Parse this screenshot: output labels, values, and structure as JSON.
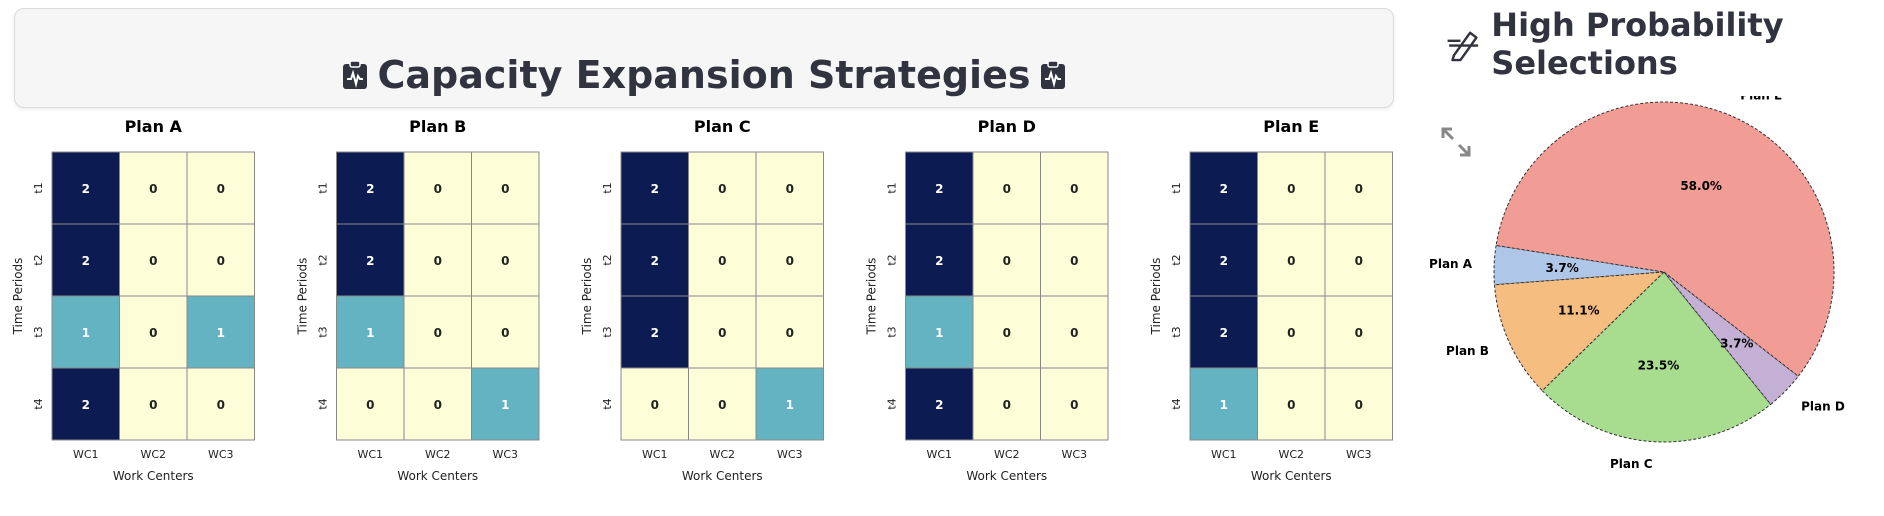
{
  "header": {
    "title": "Capacity Expansion Strategies",
    "title_icon": "clipboard-pulse-icon",
    "side_title": "High Probability Selections",
    "side_icon": "pen-strikethrough-icon",
    "expand_icon": "expand-arrows-icon"
  },
  "chart_data": [
    {
      "type": "heatmap",
      "title": "Plan A",
      "xlabel": "Work Centers",
      "ylabel": "Time Periods",
      "x_categories": [
        "WC1",
        "WC2",
        "WC3"
      ],
      "y_categories": [
        "t1",
        "t2",
        "t3",
        "t4"
      ],
      "values": [
        [
          2,
          0,
          0
        ],
        [
          2,
          0,
          0
        ],
        [
          1,
          0,
          1
        ],
        [
          2,
          0,
          0
        ]
      ],
      "colormap": "YlGnBu",
      "annotations": true
    },
    {
      "type": "heatmap",
      "title": "Plan B",
      "xlabel": "Work Centers",
      "ylabel": "Time Periods",
      "x_categories": [
        "WC1",
        "WC2",
        "WC3"
      ],
      "y_categories": [
        "t1",
        "t2",
        "t3",
        "t4"
      ],
      "values": [
        [
          2,
          0,
          0
        ],
        [
          2,
          0,
          0
        ],
        [
          1,
          0,
          0
        ],
        [
          0,
          0,
          1
        ]
      ],
      "colormap": "YlGnBu",
      "annotations": true
    },
    {
      "type": "heatmap",
      "title": "Plan C",
      "xlabel": "Work Centers",
      "ylabel": "Time Periods",
      "x_categories": [
        "WC1",
        "WC2",
        "WC3"
      ],
      "y_categories": [
        "t1",
        "t2",
        "t3",
        "t4"
      ],
      "values": [
        [
          2,
          0,
          0
        ],
        [
          2,
          0,
          0
        ],
        [
          2,
          0,
          0
        ],
        [
          0,
          0,
          1
        ]
      ],
      "colormap": "YlGnBu",
      "annotations": true
    },
    {
      "type": "heatmap",
      "title": "Plan D",
      "xlabel": "Work Centers",
      "ylabel": "Time Periods",
      "x_categories": [
        "WC1",
        "WC2",
        "WC3"
      ],
      "y_categories": [
        "t1",
        "t2",
        "t3",
        "t4"
      ],
      "values": [
        [
          2,
          0,
          0
        ],
        [
          2,
          0,
          0
        ],
        [
          1,
          0,
          0
        ],
        [
          2,
          0,
          0
        ]
      ],
      "colormap": "YlGnBu",
      "annotations": true
    },
    {
      "type": "heatmap",
      "title": "Plan E",
      "xlabel": "Work Centers",
      "ylabel": "Time Periods",
      "x_categories": [
        "WC1",
        "WC2",
        "WC3"
      ],
      "y_categories": [
        "t1",
        "t2",
        "t3",
        "t4"
      ],
      "values": [
        [
          2,
          0,
          0
        ],
        [
          2,
          0,
          0
        ],
        [
          2,
          0,
          0
        ],
        [
          1,
          0,
          0
        ]
      ],
      "colormap": "YlGnBu",
      "annotations": true
    },
    {
      "type": "pie",
      "slices": [
        {
          "label": "Plan A",
          "value": 3.7,
          "pct_label": "3.7%",
          "color": "#aec7e8"
        },
        {
          "label": "Plan B",
          "value": 11.1,
          "pct_label": "11.1%",
          "color": "#f5bd80"
        },
        {
          "label": "Plan C",
          "value": 23.5,
          "pct_label": "23.5%",
          "color": "#a8dd90"
        },
        {
          "label": "Plan D",
          "value": 3.7,
          "pct_label": "3.7%",
          "color": "#c5b0d5"
        },
        {
          "label": "Plan E",
          "value": 58.0,
          "pct_label": "58.0%",
          "color": "#f29c96"
        }
      ],
      "start_direction": "upper-left",
      "edge_style": "dashed"
    }
  ]
}
